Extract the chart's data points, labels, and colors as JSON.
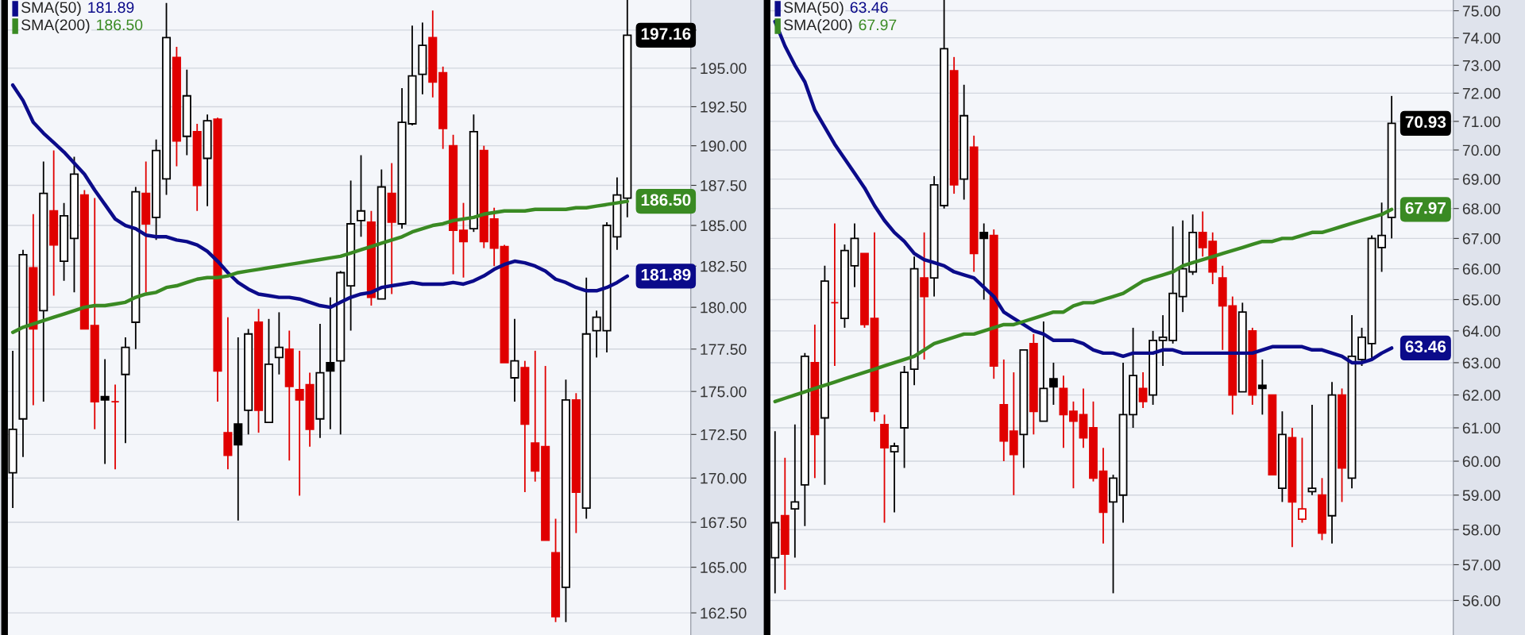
{
  "chart_data": [
    {
      "type": "candlestick",
      "log": true,
      "grid": "y",
      "legend": "top left",
      "categories": [
        null,
        null,
        null,
        null,
        null,
        null,
        null,
        null,
        null,
        null,
        null,
        null,
        null,
        null,
        null,
        null,
        null,
        null,
        null,
        null,
        null,
        null,
        null,
        null,
        null,
        null,
        null,
        null,
        null,
        null,
        null,
        null,
        null,
        null,
        null,
        null,
        null,
        null,
        null,
        null,
        null,
        null,
        null,
        null,
        null,
        null,
        null,
        null,
        null,
        null,
        null,
        null,
        null,
        null,
        null,
        null,
        null,
        null,
        null,
        null,
        null
      ],
      "ohlc": [
        [
          170.3,
          177.4,
          168.3,
          172.8
        ],
        [
          173.4,
          183.5,
          171.2,
          183.2
        ],
        [
          182.4,
          185.7,
          174.2,
          178.7
        ],
        [
          179.8,
          189.0,
          174.4,
          187.0
        ],
        [
          185.9,
          189.7,
          180.7,
          183.8
        ],
        [
          182.8,
          186.4,
          181.6,
          185.6
        ],
        [
          184.2,
          189.3,
          180.9,
          188.2
        ],
        [
          186.9,
          187.2,
          178.7,
          178.7
        ],
        [
          178.9,
          186.7,
          172.8,
          174.4
        ],
        [
          174.7,
          176.9,
          170.8,
          174.5
        ],
        [
          174.4,
          175.4,
          170.5,
          174.4
        ],
        [
          176.0,
          178.2,
          172.0,
          177.6
        ],
        [
          179.1,
          187.4,
          177.5,
          187.1
        ],
        [
          187.0,
          189.0,
          180.9,
          185.1
        ],
        [
          185.5,
          190.4,
          184.1,
          189.7
        ],
        [
          187.9,
          199.3,
          186.9,
          197.0
        ],
        [
          195.7,
          196.4,
          188.7,
          190.3
        ],
        [
          190.6,
          194.9,
          189.4,
          193.2
        ],
        [
          190.9,
          191.4,
          185.9,
          187.5
        ],
        [
          189.2,
          192.0,
          186.2,
          191.6
        ],
        [
          191.7,
          191.8,
          174.4,
          176.2
        ],
        [
          172.6,
          179.4,
          170.5,
          171.3
        ],
        [
          173.1,
          178.2,
          167.6,
          171.9
        ],
        [
          173.9,
          178.7,
          172.5,
          178.4
        ],
        [
          179.1,
          179.9,
          172.6,
          173.9
        ],
        [
          173.2,
          179.3,
          173.2,
          176.6
        ],
        [
          177.0,
          179.7,
          176.0,
          177.6
        ],
        [
          177.5,
          178.6,
          171.0,
          175.3
        ],
        [
          175.1,
          177.4,
          169.0,
          174.5
        ],
        [
          175.4,
          176.1,
          171.8,
          172.8
        ],
        [
          173.4,
          179.0,
          172.3,
          176.1
        ],
        [
          176.7,
          180.6,
          172.8,
          176.2
        ],
        [
          176.8,
          182.2,
          172.5,
          182.1
        ],
        [
          181.3,
          187.8,
          178.6,
          185.1
        ],
        [
          185.3,
          189.4,
          184.3,
          185.9
        ],
        [
          185.2,
          185.9,
          180.1,
          180.6
        ],
        [
          180.5,
          188.5,
          180.5,
          187.4
        ],
        [
          187.0,
          188.9,
          180.8,
          185.2
        ],
        [
          185.1,
          193.7,
          184.8,
          191.5
        ],
        [
          191.4,
          197.8,
          191.3,
          194.5
        ],
        [
          194.6,
          198.0,
          193.3,
          196.5
        ],
        [
          197.0,
          198.8,
          193.1,
          194.1
        ],
        [
          194.7,
          195.1,
          189.8,
          191.1
        ],
        [
          190.0,
          190.7,
          182.0,
          184.7
        ],
        [
          184.7,
          186.4,
          181.8,
          184.0
        ],
        [
          184.8,
          192.0,
          184.6,
          190.9
        ],
        [
          189.7,
          190.0,
          183.6,
          184.0
        ],
        [
          185.4,
          186.1,
          182.5,
          183.6
        ],
        [
          183.7,
          183.8,
          176.7,
          176.7
        ],
        [
          175.8,
          179.3,
          174.4,
          176.8
        ],
        [
          176.4,
          176.8,
          169.2,
          173.1
        ],
        [
          172.0,
          177.4,
          169.8,
          170.4
        ],
        [
          171.8,
          176.5,
          166.5,
          166.5
        ],
        [
          165.8,
          167.7,
          162.0,
          162.3
        ],
        [
          163.9,
          175.7,
          162.0,
          174.5
        ],
        [
          174.5,
          174.9,
          166.9,
          169.2
        ],
        [
          168.3,
          181.8,
          167.7,
          178.4
        ],
        [
          178.6,
          179.8,
          177.0,
          179.4
        ],
        [
          178.6,
          185.2,
          177.3,
          185.0
        ],
        [
          184.3,
          188.0,
          183.5,
          186.9
        ],
        [
          186.7,
          199.5,
          185.5,
          197.16
        ]
      ],
      "colors": [
        "#000000",
        "#000000",
        "#e00000",
        "#000000",
        "#e00000",
        "#000000",
        "#000000",
        "#e00000",
        "#e00000",
        "#000000",
        "#e00000",
        "#000000",
        "#000000",
        "#e00000",
        "#000000",
        "#000000",
        "#e00000",
        "#000000",
        "#e00000",
        "#000000",
        "#e00000",
        "#e00000",
        "#000000",
        "#000000",
        "#e00000",
        "#000000",
        "#000000",
        "#e00000",
        "#e00000",
        "#e00000",
        "#000000",
        "#000000",
        "#000000",
        "#000000",
        "#000000",
        "#e00000",
        "#000000",
        "#e00000",
        "#000000",
        "#000000",
        "#000000",
        "#e00000",
        "#e00000",
        "#e00000",
        "#e00000",
        "#000000",
        "#e00000",
        "#e00000",
        "#e00000",
        "#000000",
        "#e00000",
        "#e00000",
        "#e00000",
        "#e00000",
        "#000000",
        "#e00000",
        "#000000",
        "#000000",
        "#000000",
        "#000000",
        "#000000"
      ],
      "series": [
        {
          "type": "line",
          "name": "SMA(50)",
          "color": "#0b0b8a",
          "values": [
            193.9,
            192.9,
            191.5,
            190.8,
            190.2,
            189.6,
            188.9,
            188.2,
            187.2,
            186.3,
            185.4,
            185.0,
            184.8,
            184.4,
            184.3,
            184.3,
            184.1,
            184.0,
            183.8,
            183.4,
            182.8,
            182.1,
            181.5,
            181.1,
            180.8,
            180.7,
            180.6,
            180.6,
            180.5,
            180.3,
            180.1,
            180.0,
            180.3,
            180.6,
            180.8,
            180.9,
            181.2,
            181.3,
            181.4,
            181.5,
            181.4,
            181.4,
            181.4,
            181.5,
            181.4,
            181.6,
            181.9,
            182.3,
            182.6,
            182.8,
            182.7,
            182.5,
            182.2,
            181.7,
            181.5,
            181.2,
            181.0,
            181.0,
            181.2,
            181.5,
            181.89
          ],
          "value_labels": [
            null,
            null,
            null,
            null,
            null,
            null,
            null,
            null,
            null,
            null,
            null,
            null,
            null,
            null,
            null,
            null,
            null,
            null,
            null,
            null,
            null,
            null,
            null,
            null,
            null,
            null,
            null,
            null,
            null,
            null,
            null,
            null,
            null,
            null,
            null,
            null,
            null,
            null,
            null,
            null,
            null,
            null,
            null,
            null,
            null,
            null,
            null,
            null,
            null,
            null,
            null,
            null,
            null,
            null,
            null,
            null,
            null,
            null,
            null,
            null,
            "181.89"
          ]
        },
        {
          "type": "line",
          "name": "SMA(200)",
          "color": "#3a8a23",
          "values": [
            178.5,
            178.8,
            179.0,
            179.2,
            179.4,
            179.6,
            179.8,
            180.0,
            180.1,
            180.1,
            180.2,
            180.3,
            180.6,
            180.8,
            180.9,
            181.2,
            181.3,
            181.5,
            181.7,
            181.8,
            181.8,
            181.9,
            182.1,
            182.2,
            182.3,
            182.4,
            182.5,
            182.6,
            182.7,
            182.8,
            182.9,
            183.0,
            183.1,
            183.3,
            183.5,
            183.7,
            183.9,
            184.1,
            184.3,
            184.6,
            184.8,
            185.0,
            185.1,
            185.3,
            185.4,
            185.5,
            185.7,
            185.8,
            185.9,
            185.9,
            185.9,
            186.0,
            186.0,
            186.0,
            186.0,
            186.1,
            186.1,
            186.2,
            186.3,
            186.4,
            186.5
          ],
          "value_labels": [
            null,
            null,
            null,
            null,
            null,
            null,
            null,
            null,
            null,
            null,
            null,
            null,
            null,
            null,
            null,
            null,
            null,
            null,
            null,
            null,
            null,
            null,
            null,
            null,
            null,
            null,
            null,
            null,
            null,
            null,
            null,
            null,
            null,
            null,
            null,
            null,
            null,
            null,
            null,
            null,
            null,
            null,
            null,
            null,
            null,
            null,
            null,
            null,
            null,
            null,
            null,
            null,
            null,
            null,
            null,
            null,
            null,
            null,
            null,
            null,
            "186.50"
          ]
        }
      ],
      "value_labels": [
        null,
        null,
        null,
        null,
        null,
        null,
        null,
        null,
        null,
        null,
        null,
        null,
        null,
        null,
        null,
        null,
        null,
        null,
        null,
        null,
        null,
        null,
        null,
        null,
        null,
        null,
        null,
        null,
        null,
        null,
        null,
        null,
        null,
        null,
        null,
        null,
        null,
        null,
        null,
        null,
        null,
        null,
        null,
        null,
        null,
        null,
        null,
        null,
        null,
        null,
        null,
        null,
        null,
        null,
        null,
        null,
        null,
        null,
        null,
        null,
        "197.16"
      ],
      "ylim": [
        161.3,
        199.5
      ],
      "yticks": [
        {
          "value": 162.5,
          "label": "162.50"
        },
        {
          "value": 165,
          "label": "165.00"
        },
        {
          "value": 167.5,
          "label": "167.50"
        },
        {
          "value": 170,
          "label": "170.00"
        },
        {
          "value": 172.5,
          "label": "172.50"
        },
        {
          "value": 175,
          "label": "175.00"
        },
        {
          "value": 177.5,
          "label": "177.50"
        },
        {
          "value": 180,
          "label": "180.00"
        },
        {
          "value": 182.5,
          "label": "182.50"
        },
        {
          "value": 185,
          "label": "185.00"
        },
        {
          "value": 187.5,
          "label": "187.50"
        },
        {
          "value": 190,
          "label": "190.00"
        },
        {
          "value": 192.5,
          "label": "192.50"
        },
        {
          "value": 195,
          "label": "195.00"
        },
        {
          "value": 197.5,
          "label": null
        }
      ]
    },
    {
      "type": "candlestick",
      "log": true,
      "grid": "y",
      "legend": "top left",
      "categories": [
        null,
        null,
        null,
        null,
        null,
        null,
        null,
        null,
        null,
        null,
        null,
        null,
        null,
        null,
        null,
        null,
        null,
        null,
        null,
        null,
        null,
        null,
        null,
        null,
        null,
        null,
        null,
        null,
        null,
        null,
        null,
        null,
        null,
        null,
        null,
        null,
        null,
        null,
        null,
        null,
        null,
        null,
        null,
        null,
        null,
        null,
        null,
        null,
        null,
        null,
        null,
        null,
        null,
        null,
        null,
        null,
        null,
        null,
        null,
        null,
        null,
        null,
        null
      ],
      "ohlc": [
        [
          57.2,
          60.9,
          56.2,
          58.2
        ],
        [
          58.4,
          60.1,
          56.3,
          57.3
        ],
        [
          58.6,
          61.1,
          57.2,
          58.8
        ],
        [
          59.3,
          63.3,
          58.1,
          63.2
        ],
        [
          63.0,
          64.2,
          59.5,
          60.8
        ],
        [
          61.3,
          66.1,
          59.3,
          65.6
        ],
        [
          64.9,
          67.5,
          62.9,
          64.9
        ],
        [
          64.4,
          66.8,
          64.1,
          66.6
        ],
        [
          66.1,
          67.5,
          65.4,
          67.0
        ],
        [
          66.5,
          66.5,
          64.1,
          64.2
        ],
        [
          64.4,
          67.2,
          61.2,
          61.5
        ],
        [
          61.1,
          61.4,
          58.2,
          60.4
        ],
        [
          60.28,
          60.55,
          58.5,
          60.45
        ],
        [
          61.0,
          62.9,
          59.8,
          62.7
        ],
        [
          62.8,
          66.4,
          62.3,
          66.0
        ],
        [
          65.7,
          67.2,
          63.1,
          65.1
        ],
        [
          65.7,
          69.1,
          65.1,
          68.8
        ],
        [
          68.1,
          75.4,
          68.0,
          73.6
        ],
        [
          72.8,
          73.3,
          68.5,
          68.8
        ],
        [
          69.0,
          72.3,
          68.3,
          71.2
        ],
        [
          70.1,
          70.5,
          65.9,
          66.5
        ],
        [
          67.2,
          67.5,
          65.0,
          67.0
        ],
        [
          67.1,
          67.3,
          62.5,
          62.9
        ],
        [
          61.7,
          63.1,
          60.0,
          60.6
        ],
        [
          60.9,
          62.7,
          59.0,
          60.2
        ],
        [
          60.8,
          63.4,
          59.8,
          63.4
        ],
        [
          63.6,
          63.9,
          60.8,
          61.5
        ],
        [
          61.2,
          64.3,
          61.2,
          62.2
        ],
        [
          62.5,
          63.0,
          61.7,
          62.25
        ],
        [
          62.2,
          62.6,
          60.4,
          61.4
        ],
        [
          61.5,
          61.8,
          59.2,
          61.2
        ],
        [
          61.4,
          62.2,
          60.4,
          60.7
        ],
        [
          61.0,
          61.8,
          59.4,
          59.5
        ],
        [
          59.7,
          60.4,
          57.6,
          58.5
        ],
        [
          58.8,
          59.6,
          56.2,
          59.5
        ],
        [
          59.0,
          63.0,
          58.2,
          61.4
        ],
        [
          61.4,
          64.1,
          61.0,
          62.6
        ],
        [
          62.2,
          62.7,
          61.6,
          61.8
        ],
        [
          62.0,
          64.0,
          61.7,
          63.7
        ],
        [
          63.7,
          64.5,
          62.9,
          63.8
        ],
        [
          63.7,
          67.4,
          63.6,
          65.2
        ],
        [
          65.1,
          67.6,
          64.6,
          66.0
        ],
        [
          65.9,
          67.8,
          65.8,
          67.2
        ],
        [
          67.2,
          67.9,
          66.4,
          66.7
        ],
        [
          66.9,
          67.2,
          65.5,
          65.9
        ],
        [
          65.7,
          66.1,
          63.4,
          64.8
        ],
        [
          64.8,
          65.1,
          61.4,
          62.0
        ],
        [
          62.1,
          64.9,
          62.1,
          64.6
        ],
        [
          64.0,
          64.1,
          61.7,
          62.0
        ],
        [
          62.3,
          63.1,
          61.4,
          62.2
        ],
        [
          62.0,
          62.0,
          59.6,
          59.6
        ],
        [
          59.2,
          61.5,
          58.8,
          60.8
        ],
        [
          60.7,
          61.0,
          57.5,
          58.8
        ],
        [
          58.3,
          60.7,
          58.2,
          58.6
        ],
        [
          59.1,
          61.7,
          59.0,
          59.2
        ],
        [
          59.0,
          59.5,
          57.7,
          57.9
        ],
        [
          58.4,
          62.4,
          57.6,
          62.0
        ],
        [
          62.0,
          62.2,
          58.8,
          59.8
        ],
        [
          59.5,
          64.5,
          59.2,
          63.2
        ],
        [
          63.1,
          64.1,
          62.9,
          63.8
        ],
        [
          63.6,
          67.1,
          63.1,
          67.0
        ],
        [
          66.7,
          68.2,
          65.9,
          67.1
        ],
        [
          67.7,
          71.9,
          67.0,
          70.93
        ]
      ],
      "colors": [
        "#000000",
        "#e00000",
        "#000000",
        "#000000",
        "#e00000",
        "#000000",
        "#e00000",
        "#000000",
        "#000000",
        "#e00000",
        "#e00000",
        "#e00000",
        "#000000",
        "#000000",
        "#000000",
        "#e00000",
        "#000000",
        "#000000",
        "#e00000",
        "#000000",
        "#e00000",
        "#000000",
        "#e00000",
        "#e00000",
        "#e00000",
        "#000000",
        "#e00000",
        "#000000",
        "#000000",
        "#e00000",
        "#e00000",
        "#e00000",
        "#e00000",
        "#e00000",
        "#000000",
        "#000000",
        "#000000",
        "#e00000",
        "#000000",
        "#000000",
        "#000000",
        "#000000",
        "#000000",
        "#e00000",
        "#e00000",
        "#e00000",
        "#e00000",
        "#000000",
        "#e00000",
        "#000000",
        "#e00000",
        "#000000",
        "#e00000",
        "#e00000",
        "#000000",
        "#e00000",
        "#000000",
        "#e00000",
        "#000000",
        "#000000",
        "#000000",
        "#000000",
        "#000000"
      ],
      "series": [
        {
          "type": "line",
          "name": "SMA(50)",
          "color": "#0b0b8a",
          "values": [
            74.6,
            73.7,
            73.0,
            72.4,
            71.4,
            70.8,
            70.2,
            69.7,
            69.2,
            68.7,
            68.1,
            67.6,
            67.2,
            66.9,
            66.5,
            66.3,
            66.2,
            66.1,
            65.9,
            65.8,
            65.7,
            65.4,
            65.1,
            64.6,
            64.4,
            64.2,
            64.0,
            63.9,
            63.7,
            63.7,
            63.7,
            63.6,
            63.4,
            63.3,
            63.3,
            63.2,
            63.3,
            63.3,
            63.3,
            63.4,
            63.4,
            63.3,
            63.3,
            63.3,
            63.3,
            63.3,
            63.3,
            63.3,
            63.3,
            63.4,
            63.5,
            63.5,
            63.5,
            63.5,
            63.4,
            63.4,
            63.3,
            63.2,
            63.0,
            63.0,
            63.1,
            63.3,
            63.46
          ],
          "value_labels": [
            null,
            null,
            null,
            null,
            null,
            null,
            null,
            null,
            null,
            null,
            null,
            null,
            null,
            null,
            null,
            null,
            null,
            null,
            null,
            null,
            null,
            null,
            null,
            null,
            null,
            null,
            null,
            null,
            null,
            null,
            null,
            null,
            null,
            null,
            null,
            null,
            null,
            null,
            null,
            null,
            null,
            null,
            null,
            null,
            null,
            null,
            null,
            null,
            null,
            null,
            null,
            null,
            null,
            null,
            null,
            null,
            null,
            null,
            null,
            null,
            null,
            null,
            "63.46"
          ]
        },
        {
          "type": "line",
          "name": "SMA(200)",
          "color": "#3a8a23",
          "values": [
            61.8,
            61.9,
            62.0,
            62.1,
            62.2,
            62.3,
            62.4,
            62.5,
            62.6,
            62.7,
            62.8,
            62.9,
            63.0,
            63.1,
            63.2,
            63.4,
            63.6,
            63.7,
            63.8,
            63.9,
            63.9,
            64.0,
            64.1,
            64.2,
            64.2,
            64.3,
            64.4,
            64.5,
            64.6,
            64.6,
            64.8,
            64.9,
            64.9,
            65.0,
            65.1,
            65.2,
            65.4,
            65.6,
            65.7,
            65.8,
            65.9,
            66.1,
            66.2,
            66.3,
            66.4,
            66.5,
            66.6,
            66.7,
            66.8,
            66.9,
            66.9,
            67.0,
            67.0,
            67.1,
            67.2,
            67.2,
            67.3,
            67.4,
            67.5,
            67.6,
            67.7,
            67.8,
            67.97
          ],
          "value_labels": [
            null,
            null,
            null,
            null,
            null,
            null,
            null,
            null,
            null,
            null,
            null,
            null,
            null,
            null,
            null,
            null,
            null,
            null,
            null,
            null,
            null,
            null,
            null,
            null,
            null,
            null,
            null,
            null,
            null,
            null,
            null,
            null,
            null,
            null,
            null,
            null,
            null,
            null,
            null,
            null,
            null,
            null,
            null,
            null,
            null,
            null,
            null,
            null,
            null,
            null,
            null,
            null,
            null,
            null,
            null,
            null,
            null,
            null,
            null,
            null,
            null,
            null,
            "67.97"
          ]
        }
      ],
      "value_labels": [
        null,
        null,
        null,
        null,
        null,
        null,
        null,
        null,
        null,
        null,
        null,
        null,
        null,
        null,
        null,
        null,
        null,
        null,
        null,
        null,
        null,
        null,
        null,
        null,
        null,
        null,
        null,
        null,
        null,
        null,
        null,
        null,
        null,
        null,
        null,
        null,
        null,
        null,
        null,
        null,
        null,
        null,
        null,
        null,
        null,
        null,
        null,
        null,
        null,
        null,
        null,
        null,
        null,
        null,
        null,
        null,
        null,
        null,
        null,
        null,
        null,
        null,
        "70.93"
      ],
      "ylim": [
        55.05,
        75.4
      ],
      "yticks": [
        {
          "value": 56,
          "label": "56.00"
        },
        {
          "value": 57,
          "label": "57.00"
        },
        {
          "value": 58,
          "label": "58.00"
        },
        {
          "value": 59,
          "label": "59.00"
        },
        {
          "value": 60,
          "label": "60.00"
        },
        {
          "value": 61,
          "label": "61.00"
        },
        {
          "value": 62,
          "label": "62.00"
        },
        {
          "value": 63,
          "label": "63.00"
        },
        {
          "value": 64,
          "label": "64.00"
        },
        {
          "value": 65,
          "label": "65.00"
        },
        {
          "value": 66,
          "label": "66.00"
        },
        {
          "value": 67,
          "label": "67.00"
        },
        {
          "value": 68,
          "label": "68.00"
        },
        {
          "value": 69,
          "label": "69.00"
        },
        {
          "value": 70,
          "label": "70.00"
        },
        {
          "value": 71,
          "label": "71.00"
        },
        {
          "value": 72,
          "label": "72.00"
        },
        {
          "value": 73,
          "label": "73.00"
        },
        {
          "value": 74,
          "label": "74.00"
        },
        {
          "value": 75,
          "label": "75.00"
        }
      ]
    }
  ]
}
